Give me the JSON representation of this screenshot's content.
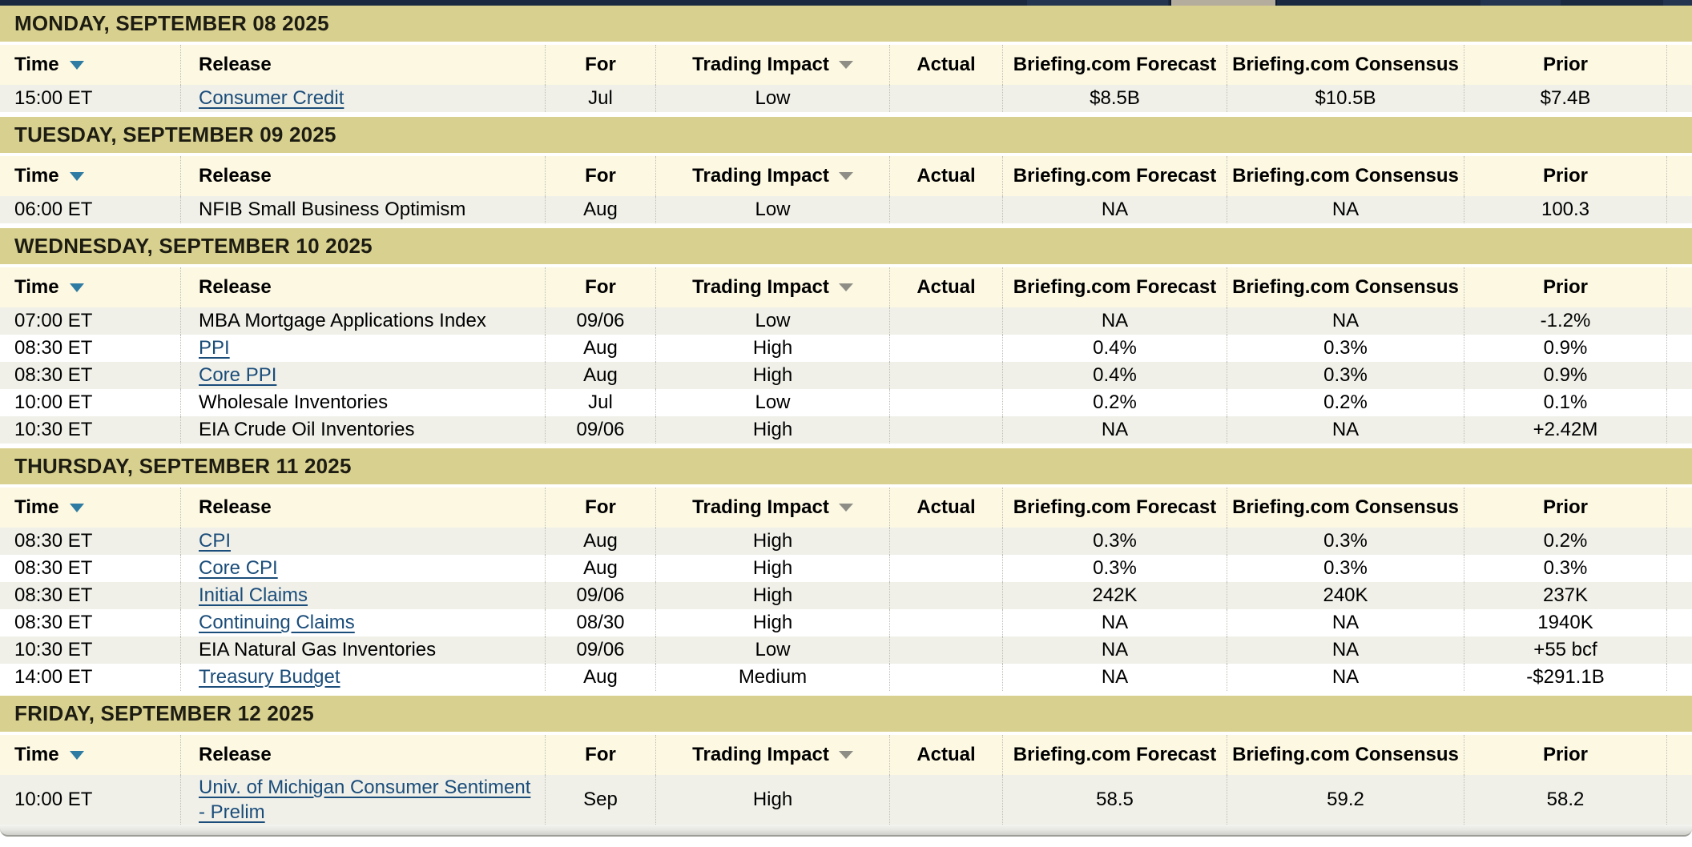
{
  "colors": {
    "navy_topbar": "#1a2940",
    "day_bar": "#d8d08f",
    "header_bg": "#fcf8e2",
    "stripe_row": "#f0f0e9",
    "link": "#1b4d7a",
    "sort_arrow": "#2e7ba3"
  },
  "calendar": {
    "column_headers": {
      "time": "Time",
      "release": "Release",
      "for": "For",
      "impact": "Trading Impact",
      "actual": "Actual",
      "forecast": "Briefing.com Forecast",
      "consensus": "Briefing.com Consensus",
      "prior": "Prior"
    },
    "days": [
      {
        "label": "MONDAY, SEPTEMBER 08 2025",
        "rows": [
          {
            "time": "15:00 ET",
            "release": "Consumer Credit",
            "link": true,
            "for": "Jul",
            "impact": "Low",
            "actual": "",
            "forecast": "$8.5B",
            "consensus": "$10.5B",
            "prior": "$7.4B"
          }
        ]
      },
      {
        "label": "TUESDAY, SEPTEMBER 09 2025",
        "rows": [
          {
            "time": "06:00 ET",
            "release": "NFIB Small Business Optimism",
            "link": false,
            "for": "Aug",
            "impact": "Low",
            "actual": "",
            "forecast": "NA",
            "consensus": "NA",
            "prior": "100.3"
          }
        ]
      },
      {
        "label": "WEDNESDAY, SEPTEMBER 10 2025",
        "rows": [
          {
            "time": "07:00 ET",
            "release": "MBA Mortgage Applications Index",
            "link": false,
            "for": "09/06",
            "impact": "Low",
            "actual": "",
            "forecast": "NA",
            "consensus": "NA",
            "prior": "-1.2%"
          },
          {
            "time": "08:30 ET",
            "release": "PPI",
            "link": true,
            "for": "Aug",
            "impact": "High",
            "actual": "",
            "forecast": "0.4%",
            "consensus": "0.3%",
            "prior": "0.9%"
          },
          {
            "time": "08:30 ET",
            "release": "Core PPI",
            "link": true,
            "for": "Aug",
            "impact": "High",
            "actual": "",
            "forecast": "0.4%",
            "consensus": "0.3%",
            "prior": "0.9%"
          },
          {
            "time": "10:00 ET",
            "release": "Wholesale Inventories",
            "link": false,
            "for": "Jul",
            "impact": "Low",
            "actual": "",
            "forecast": "0.2%",
            "consensus": "0.2%",
            "prior": "0.1%"
          },
          {
            "time": "10:30 ET",
            "release": "EIA Crude Oil Inventories",
            "link": false,
            "for": "09/06",
            "impact": "High",
            "actual": "",
            "forecast": "NA",
            "consensus": "NA",
            "prior": "+2.42M"
          }
        ]
      },
      {
        "label": "THURSDAY, SEPTEMBER 11 2025",
        "rows": [
          {
            "time": "08:30 ET",
            "release": "CPI",
            "link": true,
            "for": "Aug",
            "impact": "High",
            "actual": "",
            "forecast": "0.3%",
            "consensus": "0.3%",
            "prior": "0.2%"
          },
          {
            "time": "08:30 ET",
            "release": "Core CPI",
            "link": true,
            "for": "Aug",
            "impact": "High",
            "actual": "",
            "forecast": "0.3%",
            "consensus": "0.3%",
            "prior": "0.3%"
          },
          {
            "time": "08:30 ET",
            "release": "Initial Claims",
            "link": true,
            "for": "09/06",
            "impact": "High",
            "actual": "",
            "forecast": "242K",
            "consensus": "240K",
            "prior": "237K"
          },
          {
            "time": "08:30 ET",
            "release": "Continuing Claims",
            "link": true,
            "for": "08/30",
            "impact": "High",
            "actual": "",
            "forecast": "NA",
            "consensus": "NA",
            "prior": "1940K"
          },
          {
            "time": "10:30 ET",
            "release": "EIA Natural Gas Inventories",
            "link": false,
            "for": "09/06",
            "impact": "Low",
            "actual": "",
            "forecast": "NA",
            "consensus": "NA",
            "prior": "+55 bcf"
          },
          {
            "time": "14:00 ET",
            "release": "Treasury Budget",
            "link": true,
            "for": "Aug",
            "impact": "Medium",
            "actual": "",
            "forecast": "NA",
            "consensus": "NA",
            "prior": "-$291.1B"
          }
        ]
      },
      {
        "label": "FRIDAY, SEPTEMBER 12 2025",
        "rows": [
          {
            "time": "10:00 ET",
            "release": "Univ. of Michigan Consumer Sentiment - Prelim",
            "link": true,
            "for": "Sep",
            "impact": "High",
            "actual": "",
            "forecast": "58.5",
            "consensus": "59.2",
            "prior": "58.2"
          }
        ]
      }
    ]
  }
}
